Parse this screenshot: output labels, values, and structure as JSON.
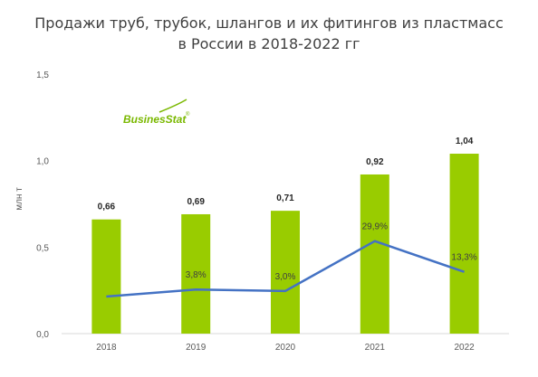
{
  "chart_data": {
    "type": "bar",
    "title_lines": [
      "Продажи труб, трубок, шлангов и их фитингов из пластмасс",
      "в России в 2018-2022 гг"
    ],
    "ylabel": "млн т",
    "xlabel": "",
    "categories": [
      "2018",
      "2019",
      "2020",
      "2021",
      "2022"
    ],
    "ylim": [
      0,
      1.5
    ],
    "yticks": [
      "0,0",
      "0,5",
      "1,0",
      "1,5"
    ],
    "grid": false,
    "series": [
      {
        "type": "bar",
        "values": [
          0.66,
          0.69,
          0.71,
          0.92,
          1.04
        ],
        "labels": [
          "0,66",
          "0,69",
          "0,71",
          "0,92",
          "1,04"
        ],
        "color": "#99cc00"
      },
      {
        "type": "line",
        "axis": "secondary-hidden",
        "values": [
          null,
          3.8,
          3.0,
          29.9,
          13.3
        ],
        "labels": [
          "",
          "3,8%",
          "3,0%",
          "29,9%",
          "13,3%"
        ],
        "color": "#4472c4"
      }
    ]
  },
  "logo": {
    "text": "BusinesStat",
    "mark": "®",
    "color": "#7ab800"
  }
}
